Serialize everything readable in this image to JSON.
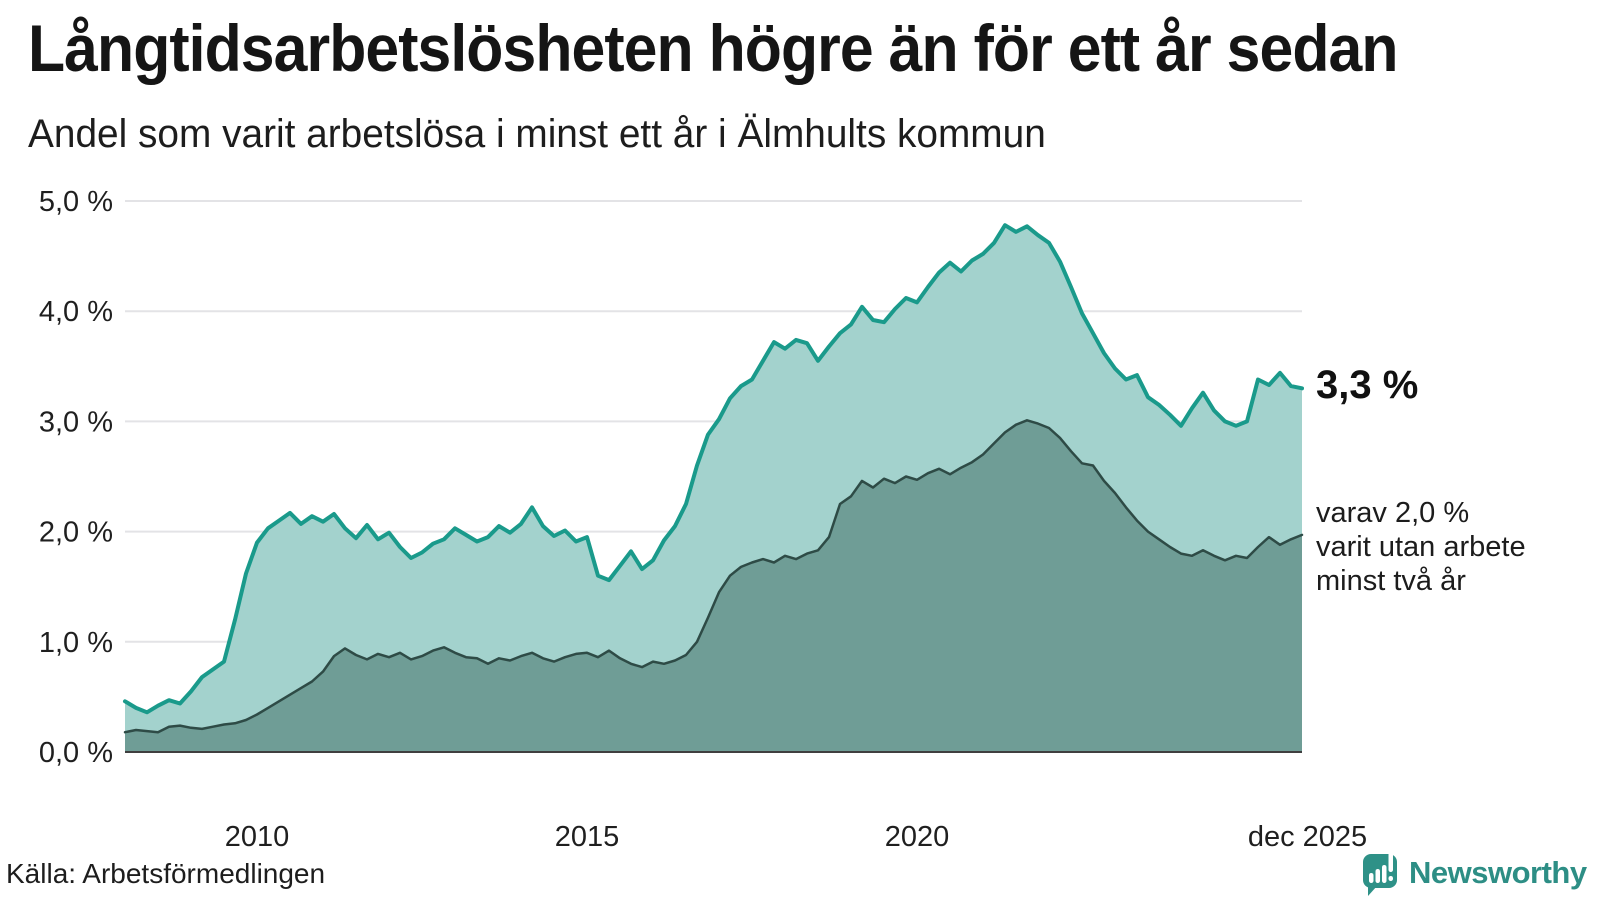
{
  "header": {},
  "source": {
    "label": "Källa: Arbetsförmedlingen"
  },
  "branding": {
    "name": "Newsworthy"
  },
  "annotations": {
    "latest_value_label": "3,3 %",
    "latest_value": 3.3,
    "secondary_label": "varav 2,0 %\nvarit utan arbete\nminst två år",
    "secondary_value": 2.0
  },
  "colors": {
    "teal_line": "#1a9a8b",
    "light_fill": "#a3d2cd",
    "dark_fill": "#6f9d96",
    "dark_line": "#2e4b46",
    "grid": "#e3e3e6",
    "axis": "#3f3f3f",
    "text": "#1a1a1a",
    "brand_teal": "#2d8e85"
  },
  "chart_data": {
    "type": "area",
    "title": "Långtidsarbetslösheten högre än för ett år sedan",
    "subtitle": "Andel som varit arbetslösa i minst ett år i Älmhults kommun",
    "xlabel": "",
    "ylabel": "",
    "xlim": [
      2008.0,
      2025.8333
    ],
    "ylim": [
      0,
      5
    ],
    "grid": true,
    "legend_position": "none",
    "x_start": 2008.0,
    "x_step": 0.1666667,
    "x_ticks": [
      {
        "value": 2010,
        "label": "2010"
      },
      {
        "value": 2015,
        "label": "2015"
      },
      {
        "value": 2020,
        "label": "2020"
      },
      {
        "value": 2025.9167,
        "label": "dec 2025"
      }
    ],
    "y_ticks": [
      {
        "value": 0,
        "label": "0,0 %"
      },
      {
        "value": 1,
        "label": "1,0 %"
      },
      {
        "value": 2,
        "label": "2,0 %"
      },
      {
        "value": 3,
        "label": "3,0 %"
      },
      {
        "value": 4,
        "label": "4,0 %"
      },
      {
        "value": 5,
        "label": "5,0 %"
      }
    ],
    "series": [
      {
        "name": "Andel som varit arbetslösa i minst ett år",
        "values": [
          0.46,
          0.4,
          0.36,
          0.42,
          0.47,
          0.44,
          0.55,
          0.68,
          0.75,
          0.82,
          1.2,
          1.62,
          1.9,
          2.03,
          2.1,
          2.17,
          2.07,
          2.14,
          2.09,
          2.16,
          2.03,
          1.94,
          2.06,
          1.93,
          1.99,
          1.86,
          1.76,
          1.81,
          1.89,
          1.93,
          2.03,
          1.97,
          1.91,
          1.95,
          2.05,
          1.99,
          2.07,
          2.22,
          2.05,
          1.96,
          2.01,
          1.91,
          1.95,
          1.6,
          1.56,
          1.69,
          1.82,
          1.66,
          1.74,
          1.92,
          2.05,
          2.25,
          2.6,
          2.88,
          3.02,
          3.21,
          3.32,
          3.38,
          3.55,
          3.72,
          3.66,
          3.74,
          3.71,
          3.55,
          3.68,
          3.8,
          3.88,
          4.04,
          3.92,
          3.9,
          4.02,
          4.12,
          4.08,
          4.22,
          4.35,
          4.44,
          4.36,
          4.46,
          4.52,
          4.62,
          4.78,
          4.72,
          4.77,
          4.69,
          4.62,
          4.45,
          4.22,
          3.98,
          3.8,
          3.62,
          3.48,
          3.38,
          3.42,
          3.22,
          3.15,
          3.06,
          2.96,
          3.12,
          3.26,
          3.1,
          3.0,
          2.96,
          3.0,
          3.38,
          3.33,
          3.44,
          3.32,
          3.3
        ]
      },
      {
        "name": "varav utan arbete minst två år",
        "values": [
          0.18,
          0.2,
          0.19,
          0.18,
          0.23,
          0.24,
          0.22,
          0.21,
          0.23,
          0.25,
          0.26,
          0.29,
          0.34,
          0.4,
          0.46,
          0.52,
          0.58,
          0.64,
          0.73,
          0.87,
          0.94,
          0.88,
          0.84,
          0.89,
          0.86,
          0.9,
          0.84,
          0.87,
          0.92,
          0.95,
          0.9,
          0.86,
          0.85,
          0.8,
          0.85,
          0.83,
          0.87,
          0.9,
          0.85,
          0.82,
          0.86,
          0.89,
          0.9,
          0.86,
          0.92,
          0.85,
          0.8,
          0.77,
          0.82,
          0.8,
          0.83,
          0.88,
          1.0,
          1.22,
          1.45,
          1.6,
          1.68,
          1.72,
          1.75,
          1.72,
          1.78,
          1.75,
          1.8,
          1.83,
          1.95,
          2.25,
          2.32,
          2.46,
          2.4,
          2.48,
          2.44,
          2.5,
          2.47,
          2.53,
          2.57,
          2.52,
          2.58,
          2.63,
          2.7,
          2.8,
          2.9,
          2.97,
          3.01,
          2.98,
          2.94,
          2.85,
          2.73,
          2.62,
          2.6,
          2.46,
          2.35,
          2.22,
          2.1,
          2.0,
          1.93,
          1.86,
          1.8,
          1.78,
          1.83,
          1.78,
          1.74,
          1.78,
          1.76,
          1.86,
          1.95,
          1.88,
          1.93,
          1.97
        ]
      }
    ]
  }
}
